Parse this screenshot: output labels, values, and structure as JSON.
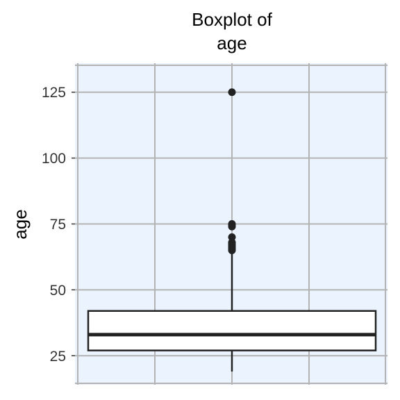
{
  "chart_data": {
    "type": "boxplot",
    "title_lines": [
      "Boxplot of",
      "age"
    ],
    "ylabel": "age",
    "xlabel": "",
    "ylim": [
      14,
      136
    ],
    "y_ticks": [
      25,
      50,
      75,
      100,
      125
    ],
    "y_tick_labels": [
      "25",
      "50",
      "75",
      "100",
      "125"
    ],
    "grid": true,
    "legend": "none",
    "box": {
      "q1": 27,
      "median": 33,
      "q3": 42,
      "whisker_low": 19,
      "whisker_high": 64,
      "outliers": [
        65,
        65.5,
        66,
        66.5,
        67,
        67.5,
        68,
        70,
        74,
        74.5,
        75,
        125
      ]
    },
    "colors": {
      "panel_background": "#EBF4FE",
      "grid": "#B3B3B3",
      "box_fill": "#FFFFFF",
      "box_stroke": "#222222",
      "outlier": "#222222"
    }
  }
}
